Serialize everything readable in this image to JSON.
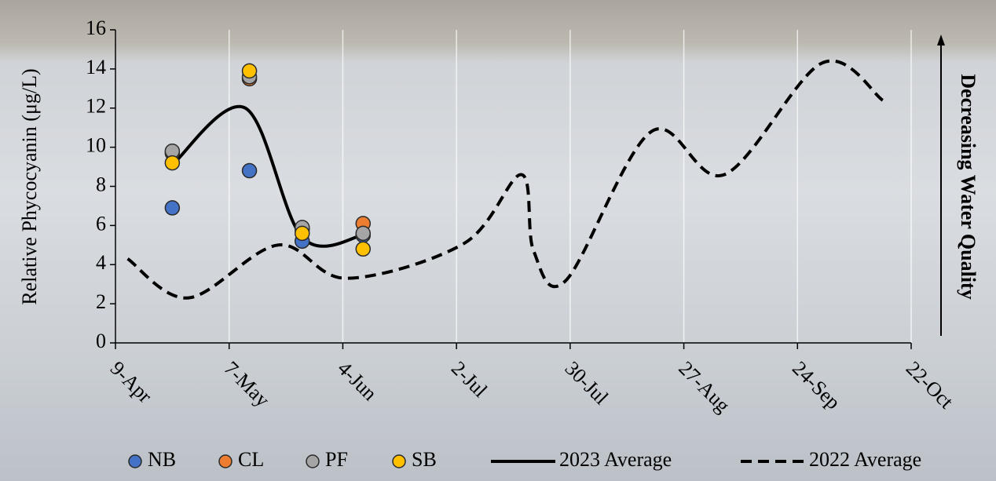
{
  "chart_data": {
    "type": "scatter",
    "ylabel": "Relative Phycocyanin (μg/L)",
    "annotation": "Decreasing Water Quality",
    "xlim": [
      99,
      295
    ],
    "xticks": [
      {
        "value": 99,
        "label": "9-Apr"
      },
      {
        "value": 127,
        "label": "7-May"
      },
      {
        "value": 155,
        "label": "4-Jun"
      },
      {
        "value": 183,
        "label": "2-Jul"
      },
      {
        "value": 211,
        "label": "30-Jul"
      },
      {
        "value": 239,
        "label": "27-Aug"
      },
      {
        "value": 267,
        "label": "24-Sep"
      },
      {
        "value": 295,
        "label": "22-Oct"
      }
    ],
    "ylim": [
      0,
      16
    ],
    "yticks": [
      0,
      2,
      4,
      6,
      8,
      10,
      12,
      14,
      16
    ],
    "grid": "x",
    "legend": "bottom",
    "series": [
      {
        "name": "NB",
        "type": "scatter",
        "color": "#4472c4",
        "x": [
          113,
          132,
          145,
          160
        ],
        "values": [
          6.9,
          8.8,
          5.2,
          5.5
        ]
      },
      {
        "name": "CL",
        "type": "scatter",
        "color": "#ed7d31",
        "x": [
          113,
          132,
          145,
          160
        ],
        "values": [
          9.7,
          13.5,
          5.8,
          6.1
        ]
      },
      {
        "name": "PF",
        "type": "scatter",
        "color": "#a5a5a5",
        "x": [
          113,
          132,
          145,
          160
        ],
        "values": [
          9.8,
          13.6,
          5.9,
          5.6
        ]
      },
      {
        "name": "SB",
        "type": "scatter",
        "color": "#ffc000",
        "x": [
          113,
          132,
          145,
          160
        ],
        "values": [
          9.2,
          13.9,
          5.6,
          4.8
        ]
      },
      {
        "name": "2023 Average",
        "type": "line",
        "color": "#000000",
        "dashed": false,
        "x": [
          113,
          131,
          145,
          160
        ],
        "values": [
          9.1,
          12.0,
          5.4,
          5.5
        ]
      },
      {
        "name": "2022 Average",
        "type": "line",
        "color": "#000000",
        "dashed": true,
        "x": [
          102,
          117,
          139,
          156,
          185,
          199,
          202,
          210,
          231,
          249,
          273,
          288
        ],
        "values": [
          4.3,
          2.3,
          5.0,
          3.3,
          5.1,
          8.6,
          4.7,
          3.2,
          10.8,
          8.6,
          14.3,
          12.4
        ]
      }
    ]
  }
}
